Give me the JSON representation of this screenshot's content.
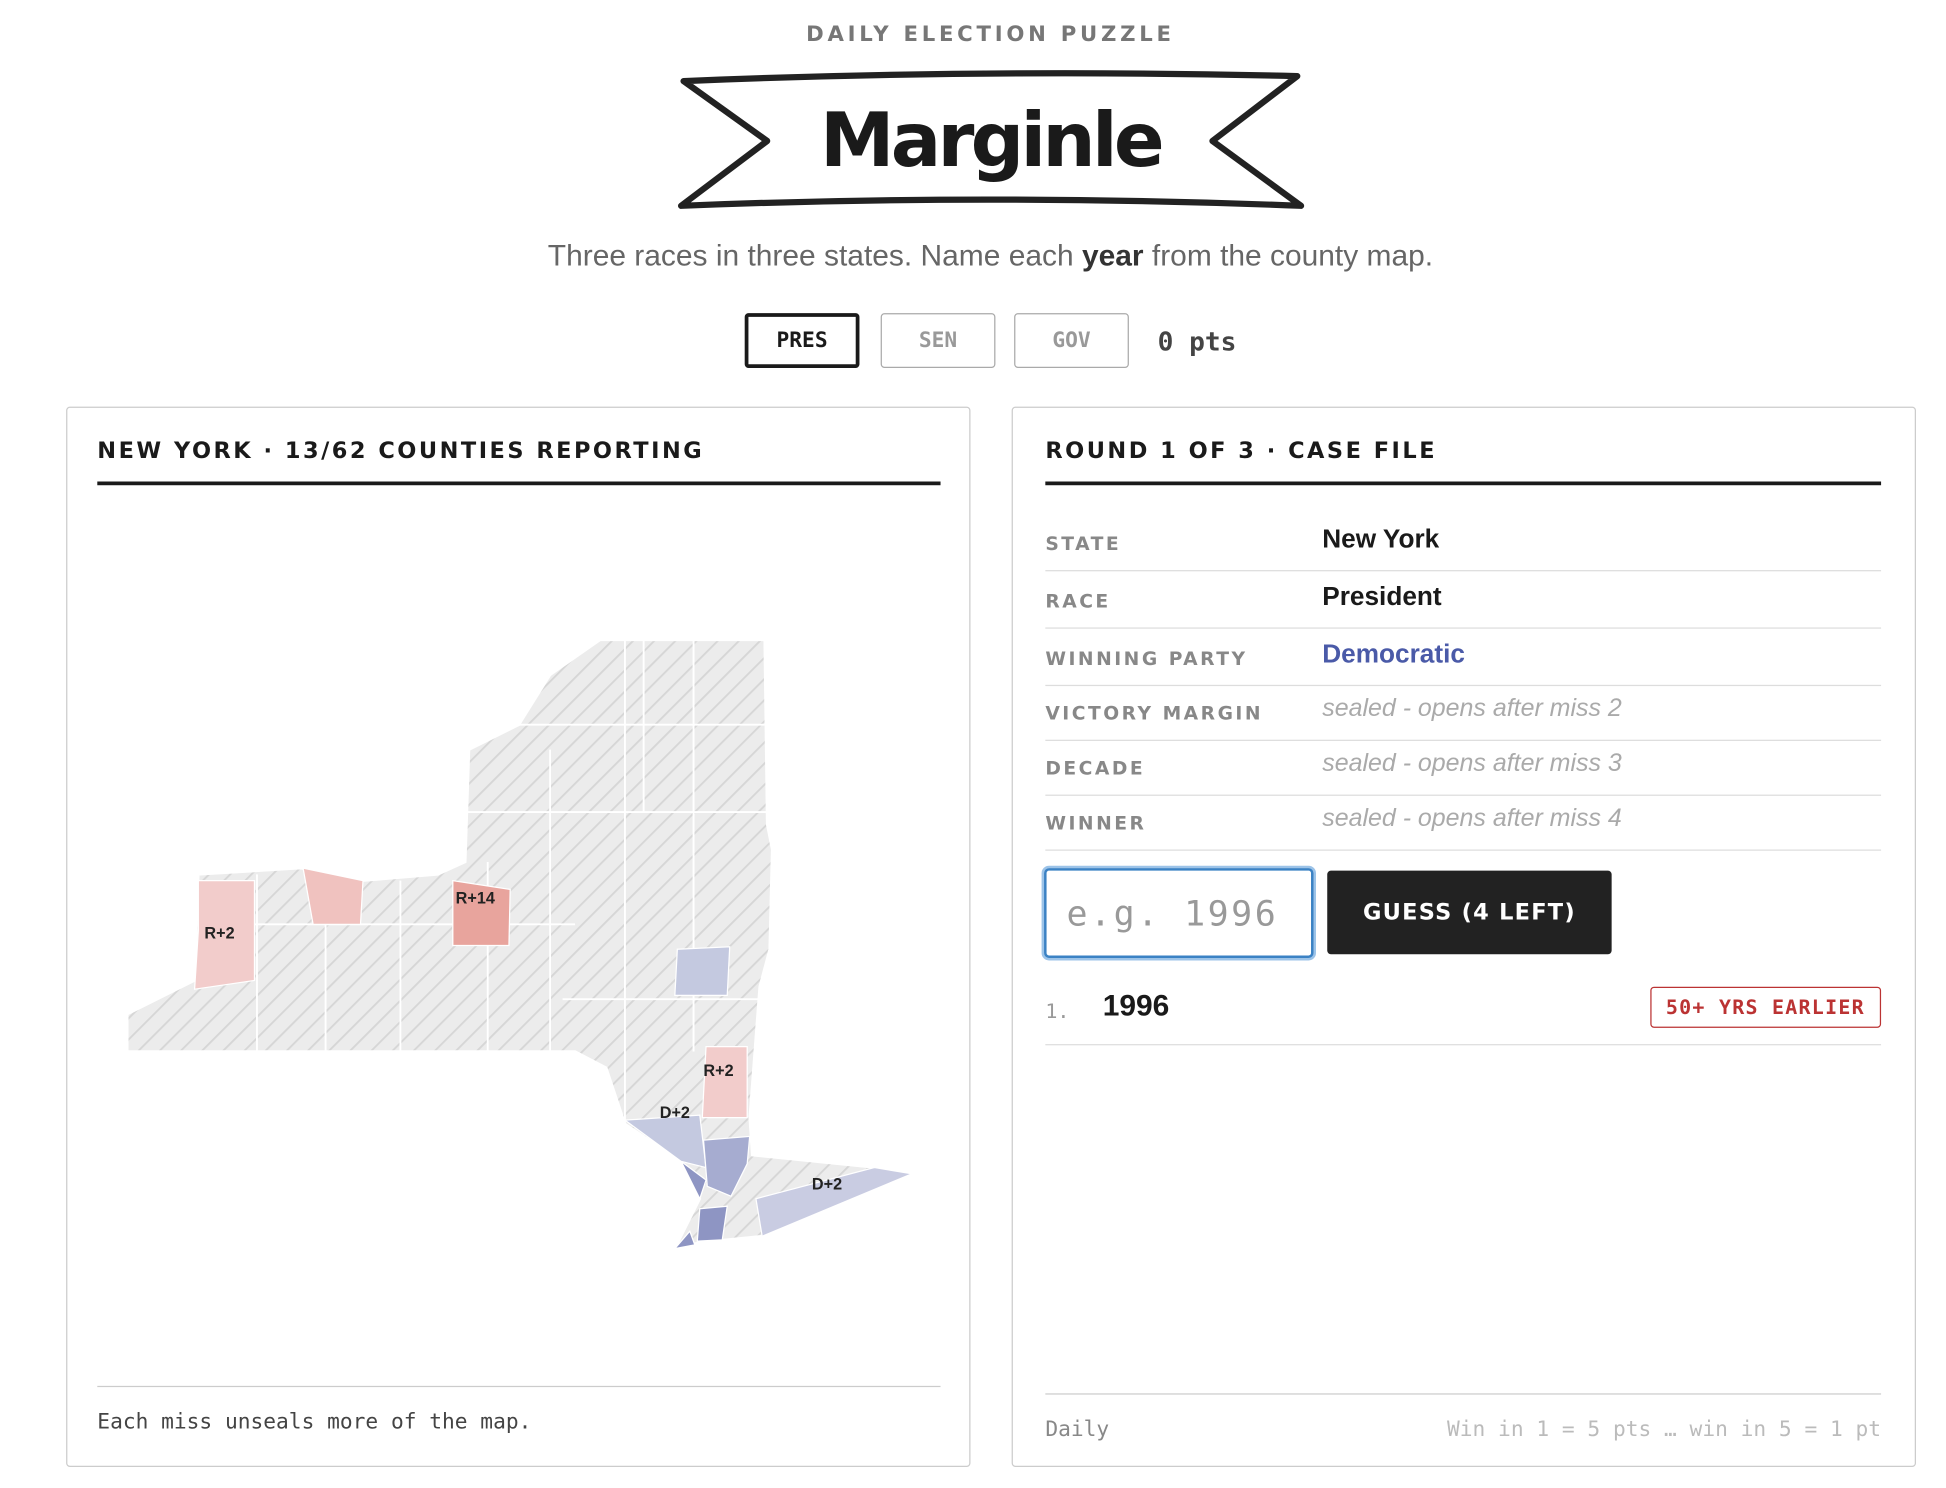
{
  "header": {
    "eyebrow": "DAILY ELECTION PUZZLE",
    "title": "Marginle",
    "subtitle_before": "Three races in three states. Name each",
    "subtitle_bold": "year",
    "subtitle_after": "from the county map."
  },
  "tabs": [
    "PRES",
    "SEN",
    "GOV"
  ],
  "points": "0 pts",
  "map_panel": {
    "heading": "NEW YORK · 13/62 COUNTIES REPORTING",
    "labels": [
      "R+2",
      "R+14",
      "R+2",
      "D+2",
      "D+2"
    ],
    "footer": "Each miss unseals more of the map."
  },
  "case_panel": {
    "heading": "ROUND 1 OF 3 · CASE FILE",
    "rows": [
      {
        "label": "STATE",
        "value": "New York"
      },
      {
        "label": "RACE",
        "value": "President"
      },
      {
        "label": "WINNING PARTY",
        "value": "Democratic"
      },
      {
        "label": "VICTORY MARGIN",
        "value": "sealed - opens after miss 2"
      },
      {
        "label": "DECADE",
        "value": "sealed - opens after miss 3"
      },
      {
        "label": "WINNER",
        "value": "sealed - opens after miss 4"
      }
    ],
    "input_placeholder": "e.g. 1996",
    "button": "GUESS (4 LEFT)",
    "guesses": [
      {
        "index": "1.",
        "year": "1996",
        "hint": "50+ YRS EARLIER"
      }
    ],
    "footer_left": "Daily",
    "footer_right": "Win in 1 = 5 pts … win in 5 = 1 pt"
  }
}
